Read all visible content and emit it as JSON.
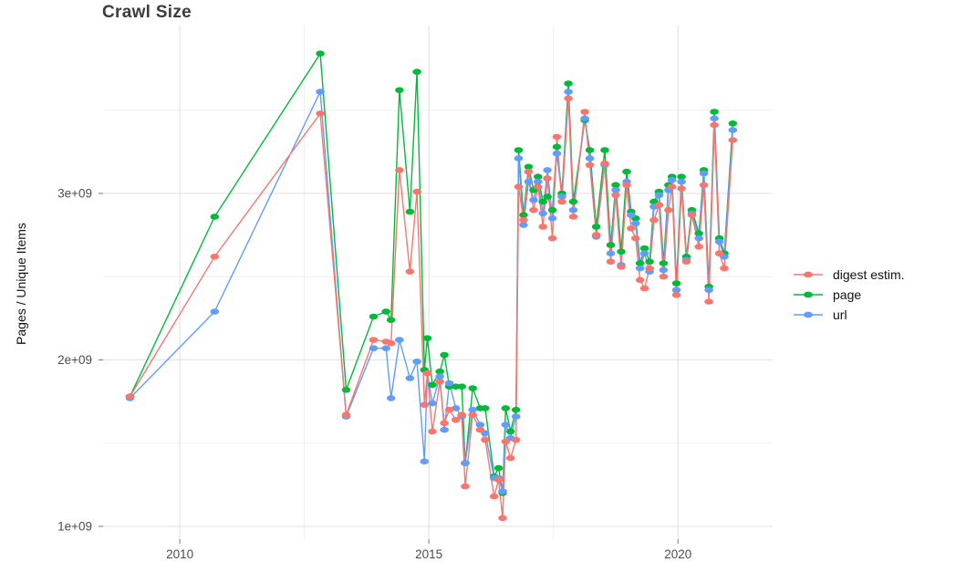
{
  "title": "Crawl Size",
  "axes": {
    "y_label": "Pages / Unique Items",
    "x_tick_labels": [
      "2010",
      "2015",
      "2020"
    ],
    "y_tick_labels": [
      "1e+09",
      "2e+09",
      "3e+09"
    ]
  },
  "legend": {
    "items": [
      {
        "label": "digest estim.",
        "color": "#F8766D"
      },
      {
        "label": "page",
        "color": "#00BA38"
      },
      {
        "label": "url",
        "color": "#619CFF"
      }
    ]
  },
  "chart_data": {
    "type": "line",
    "title": "Crawl Size",
    "xlabel": "",
    "ylabel": "Pages / Unique Items",
    "unit": "items, values in billions (1e9)",
    "xlim": [
      2008.46,
      2021.9
    ],
    "ylim": [
      0.923,
      4.008
    ],
    "x_ticks": [
      {
        "v": 2010,
        "label": "2010"
      },
      {
        "v": 2015,
        "label": "2015"
      },
      {
        "v": 2020,
        "label": "2020"
      }
    ],
    "y_ticks": [
      {
        "v": 1,
        "label": "1e+09"
      },
      {
        "v": 2,
        "label": "2e+09"
      },
      {
        "v": 3,
        "label": "3e+09"
      }
    ],
    "x_minor": [
      2012.5,
      2017.5
    ],
    "y_minor": [
      1.5,
      2.5,
      3.5
    ],
    "grid": "major and minor, light gray on white",
    "legend_position": "right",
    "x": [
      2009.0,
      2010.7,
      2012.82,
      2013.34,
      2013.89,
      2014.14,
      2014.24,
      2014.41,
      2014.62,
      2014.76,
      2014.91,
      2014.97,
      2015.07,
      2015.22,
      2015.31,
      2015.41,
      2015.54,
      2015.66,
      2015.73,
      2015.88,
      2016.03,
      2016.13,
      2016.31,
      2016.4,
      2016.48,
      2016.54,
      2016.64,
      2016.75,
      2016.8,
      2016.9,
      2017.0,
      2017.1,
      2017.19,
      2017.29,
      2017.38,
      2017.48,
      2017.57,
      2017.67,
      2017.8,
      2017.9,
      2018.13,
      2018.23,
      2018.36,
      2018.53,
      2018.65,
      2018.75,
      2018.86,
      2018.97,
      2019.06,
      2019.15,
      2019.24,
      2019.33,
      2019.43,
      2019.52,
      2019.62,
      2019.71,
      2019.81,
      2019.88,
      2019.97,
      2020.07,
      2020.17,
      2020.28,
      2020.42,
      2020.52,
      2020.62,
      2020.73,
      2020.83,
      2020.93,
      2021.1
    ],
    "series": [
      {
        "name": "digest estim.",
        "color": "#F8766D",
        "values": [
          1.78,
          2.62,
          3.48,
          1.67,
          2.12,
          2.11,
          2.1,
          3.14,
          2.53,
          3.01,
          1.73,
          1.92,
          1.57,
          1.87,
          1.62,
          1.7,
          1.64,
          1.67,
          1.24,
          1.67,
          1.58,
          1.52,
          1.18,
          1.28,
          1.05,
          1.51,
          1.41,
          1.52,
          3.04,
          2.84,
          3.13,
          2.9,
          3.04,
          2.8,
          3.09,
          2.73,
          3.34,
          2.95,
          3.57,
          2.86,
          3.49,
          3.17,
          2.75,
          3.18,
          2.59,
          2.99,
          2.56,
          3.05,
          2.79,
          2.73,
          2.48,
          2.43,
          2.55,
          2.84,
          2.93,
          2.5,
          2.9,
          3.04,
          2.39,
          3.03,
          2.59,
          2.87,
          2.68,
          3.05,
          2.35,
          3.41,
          2.64,
          2.55,
          3.32
        ]
      },
      {
        "name": "page",
        "color": "#00BA38",
        "values": [
          1.78,
          2.86,
          3.84,
          1.82,
          2.26,
          2.29,
          2.24,
          3.62,
          2.89,
          3.73,
          1.94,
          2.13,
          1.85,
          1.93,
          2.03,
          1.84,
          1.84,
          1.84,
          1.38,
          1.83,
          1.71,
          1.71,
          1.3,
          1.35,
          1.2,
          1.71,
          1.57,
          1.7,
          3.26,
          2.87,
          3.16,
          3.02,
          3.1,
          2.95,
          2.98,
          2.9,
          3.28,
          3.0,
          3.66,
          2.95,
          3.44,
          3.26,
          2.8,
          3.26,
          2.69,
          3.05,
          2.65,
          3.13,
          2.89,
          2.85,
          2.58,
          2.67,
          2.59,
          2.95,
          3.01,
          2.58,
          3.05,
          3.1,
          2.46,
          3.1,
          2.62,
          2.9,
          2.76,
          3.14,
          2.44,
          3.49,
          2.73,
          2.64,
          3.42
        ]
      },
      {
        "name": "url",
        "color": "#619CFF",
        "values": [
          1.77,
          2.29,
          3.61,
          1.66,
          2.07,
          2.07,
          1.77,
          2.12,
          1.89,
          1.99,
          1.39,
          1.92,
          1.74,
          1.9,
          1.58,
          1.86,
          1.71,
          1.66,
          1.38,
          1.7,
          1.61,
          1.56,
          1.29,
          1.29,
          1.21,
          1.61,
          1.53,
          1.66,
          3.21,
          2.81,
          3.07,
          2.96,
          3.07,
          2.88,
          3.14,
          2.85,
          3.24,
          2.98,
          3.61,
          2.9,
          3.45,
          3.21,
          2.74,
          3.17,
          2.64,
          3.02,
          2.57,
          3.07,
          2.87,
          2.82,
          2.55,
          2.64,
          2.53,
          2.92,
          2.99,
          2.54,
          3.02,
          3.08,
          2.42,
          3.07,
          2.6,
          2.88,
          2.73,
          3.12,
          2.42,
          3.45,
          2.71,
          2.62,
          3.38
        ]
      }
    ]
  }
}
